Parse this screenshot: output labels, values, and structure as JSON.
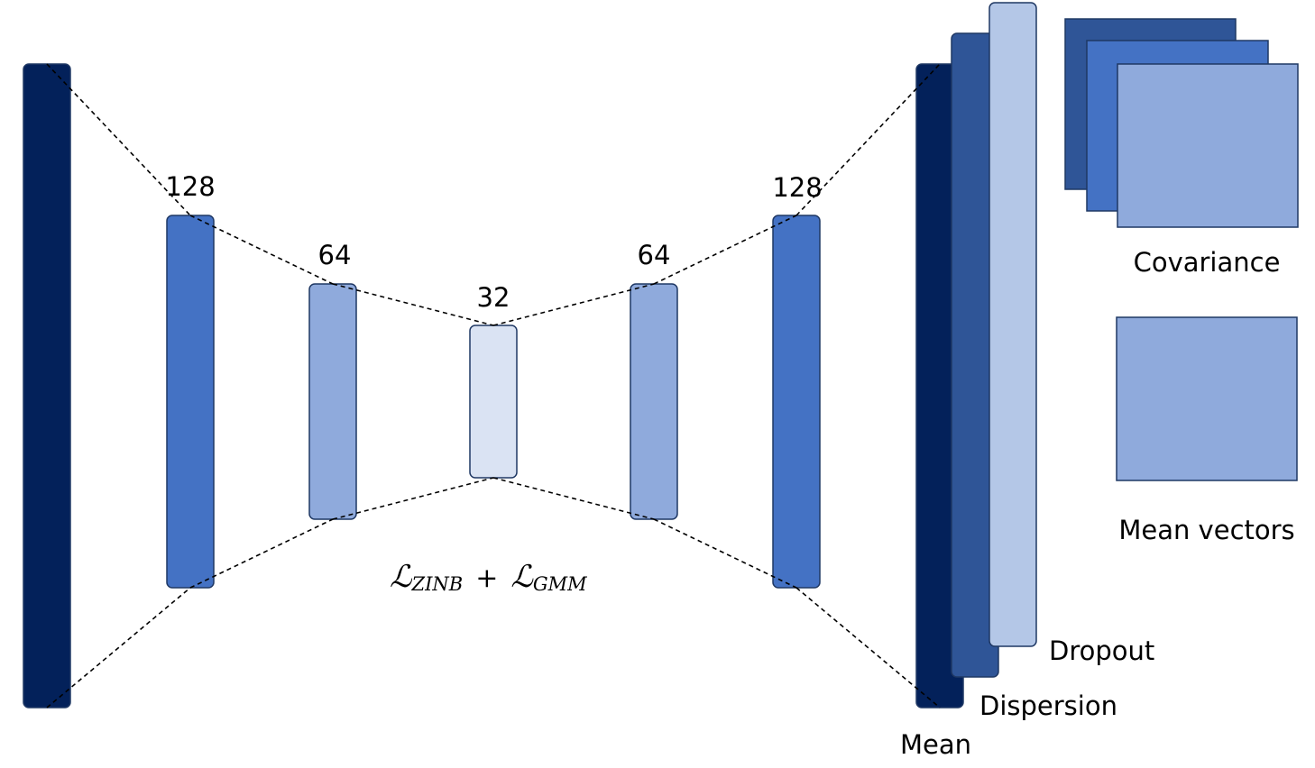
{
  "colors": {
    "navy": "#03215A",
    "dark_blue": "#2F5597",
    "medium_blue": "#4472C4",
    "light_blue": "#8FAADC",
    "pale_blue": "#B4C7E7",
    "lightest_blue": "#DAE3F3",
    "stroke": "#1F3864",
    "dash": "#000000"
  },
  "layers": {
    "enc_128": "128",
    "enc_64": "64",
    "bottleneck": "32",
    "dec_64": "64",
    "dec_128": "128"
  },
  "outputs": {
    "mean": "Mean",
    "dispersion": "Dispersion",
    "dropout": "Dropout"
  },
  "gmm": {
    "covariance": "Covariance",
    "mean_vectors": "Mean vectors"
  },
  "loss": {
    "script_symbol": "ℒ",
    "term1_sub": "ZINB",
    "plus": "+",
    "term2_sub": "GMM"
  }
}
